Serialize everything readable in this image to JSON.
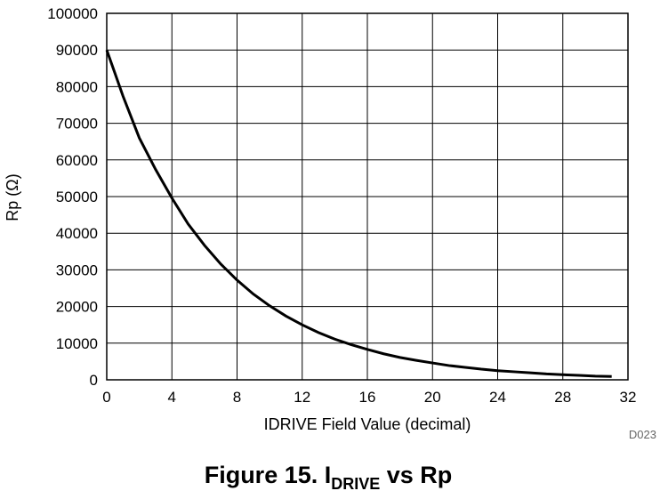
{
  "chart_data": {
    "type": "line",
    "xlabel": "IDRIVE Field Value (decimal)",
    "ylabel": "Rp (Ω)",
    "xlim": [
      0,
      32
    ],
    "ylim": [
      0,
      100000
    ],
    "xticks": [
      "0",
      "4",
      "8",
      "12",
      "16",
      "20",
      "24",
      "28",
      "32"
    ],
    "yticks": [
      "0",
      "10000",
      "20000",
      "30000",
      "40000",
      "50000",
      "60000",
      "70000",
      "80000",
      "90000",
      "100000"
    ],
    "grid": true,
    "series": [
      {
        "x": [
          0,
          1,
          2,
          3,
          4,
          5,
          6,
          7,
          8,
          9,
          10,
          11,
          12,
          13,
          14,
          15,
          16,
          17,
          18,
          19,
          20,
          21,
          22,
          23,
          24,
          25,
          26,
          27,
          28,
          29,
          30,
          31
        ],
        "values": [
          90000,
          77400,
          66000,
          57400,
          49600,
          42500,
          36700,
          31600,
          27200,
          23400,
          20200,
          17400,
          15000,
          12900,
          11100,
          9600,
          8300,
          7100,
          6100,
          5300,
          4600,
          3900,
          3400,
          2900,
          2500,
          2200,
          1900,
          1600,
          1400,
          1200,
          1000,
          900
        ]
      }
    ],
    "code": "D023",
    "caption_main": "Figure 15.  I",
    "caption_sub": "DRIVE",
    "caption_tail": " vs Rp"
  }
}
